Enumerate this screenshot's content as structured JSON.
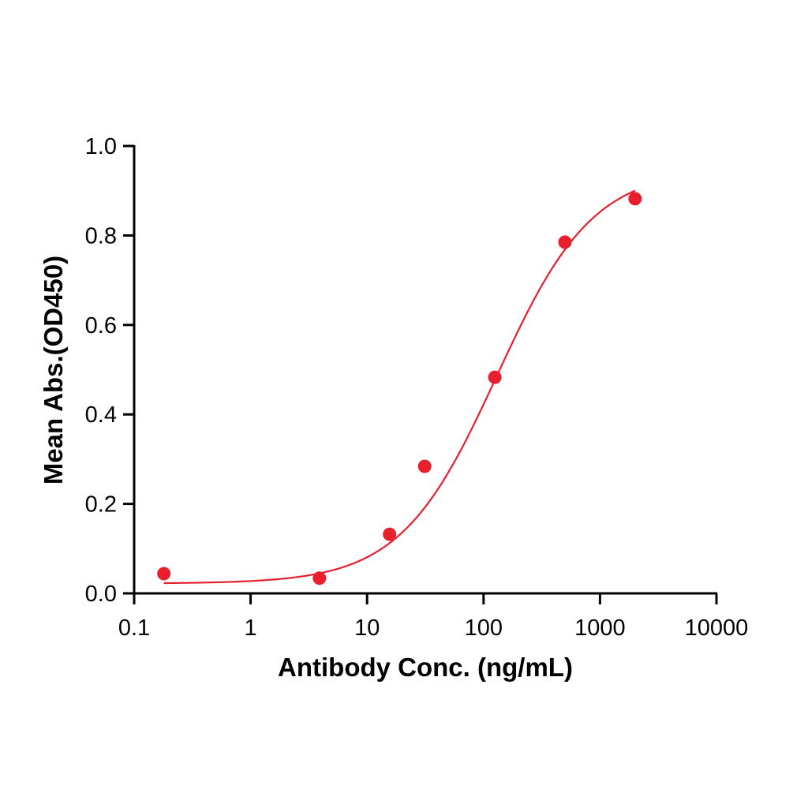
{
  "chart_data": {
    "type": "scatter",
    "title": "",
    "xlabel": "Antibody Conc. (ng/mL)",
    "ylabel": "Mean Abs.(OD450)",
    "xscale": "log",
    "xlim": [
      0.1,
      10000
    ],
    "ylim": [
      0.0,
      1.0
    ],
    "x_ticks": [
      "0.1",
      "1",
      "10",
      "100",
      "1000",
      "10000"
    ],
    "y_ticks": [
      "0.0",
      "0.2",
      "0.4",
      "0.6",
      "0.8",
      "1.0"
    ],
    "grid": false,
    "legend": null,
    "series": [
      {
        "name": "Mean Abs.",
        "color": "#e8202e",
        "marker": "circle",
        "x": [
          0.18,
          3.9,
          15.6,
          31.25,
          125,
          500,
          2000
        ],
        "y": [
          0.044,
          0.034,
          0.132,
          0.284,
          0.483,
          0.785,
          0.882
        ]
      }
    ],
    "fit_curve": {
      "type": "4PL",
      "color": "#e8202e",
      "bottom": 0.022,
      "top": 0.95,
      "ec50": 130,
      "hill": 1.05,
      "x_range": [
        0.18,
        2000
      ]
    }
  }
}
